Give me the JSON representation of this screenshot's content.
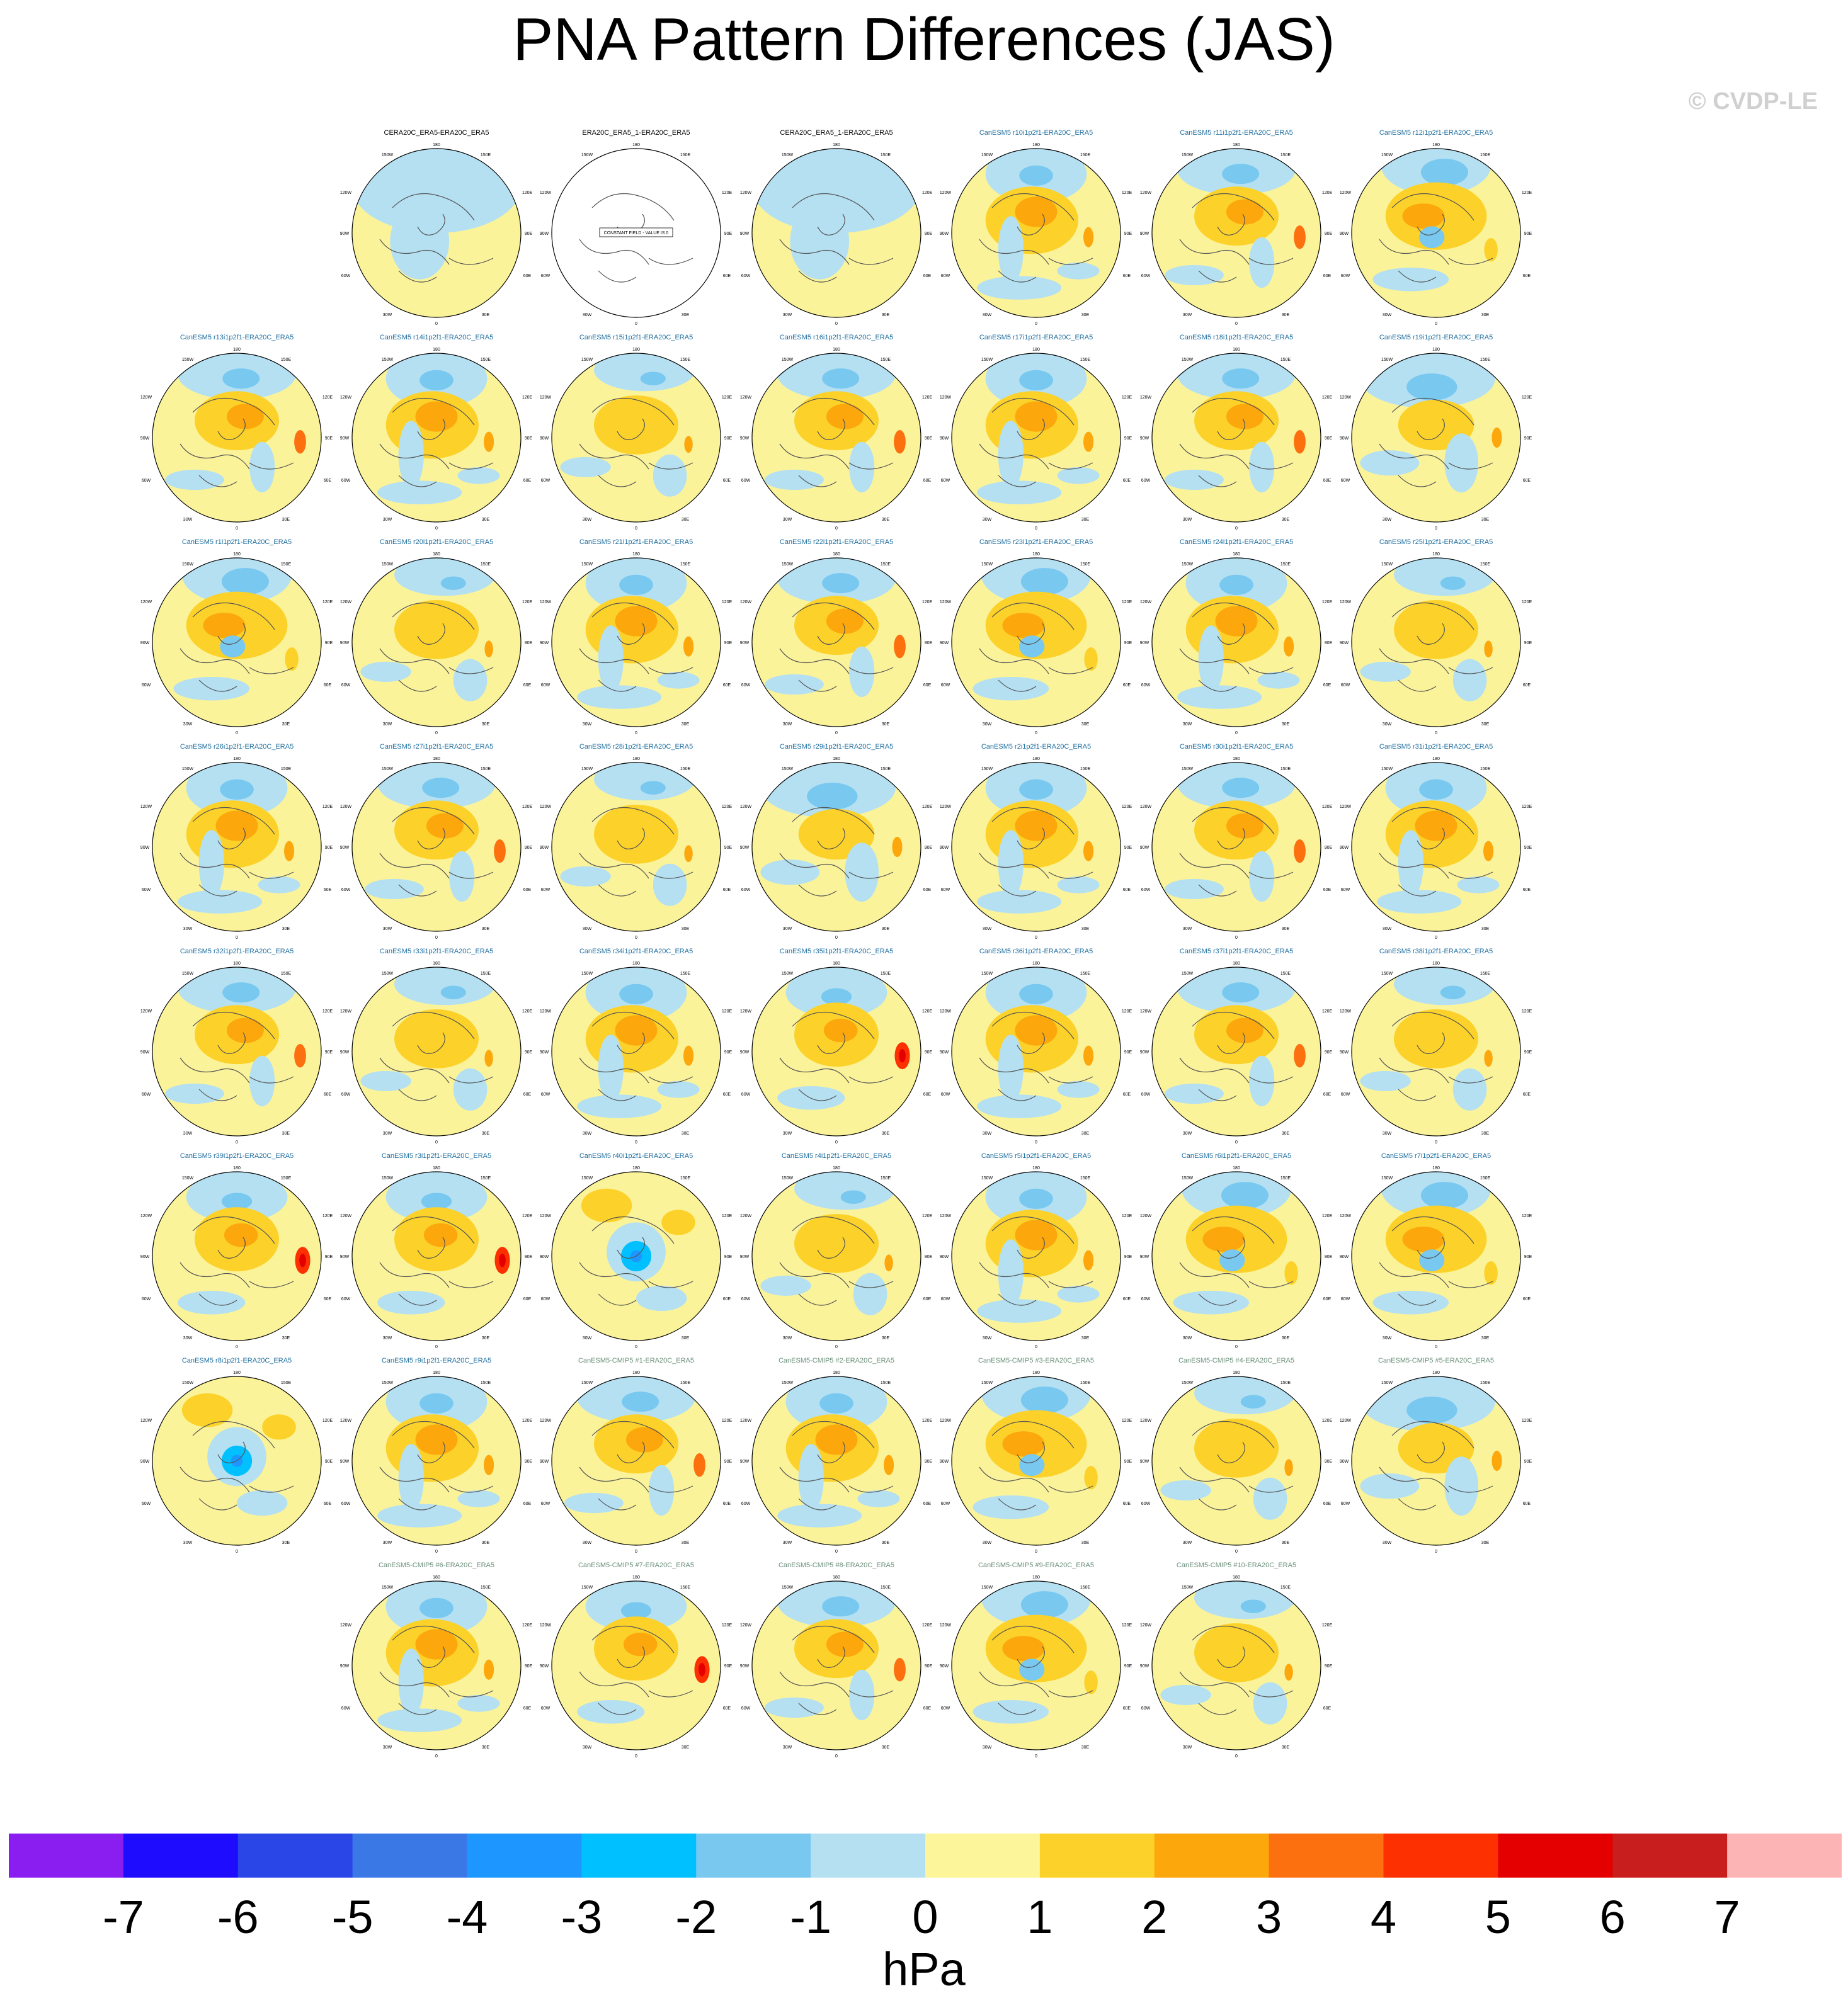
{
  "title": "PNA Pattern Differences (JAS)",
  "copyright": "© CVDP-LE",
  "colors": {
    "model_title": "#1f6fa0",
    "cmip5_title": "#6a8f7a",
    "obs_title": "#000000",
    "map_base": "#fbf39a",
    "coast": "#555555"
  },
  "map_labels": {
    "top": "180",
    "bottom": "0",
    "upper_left": "150W",
    "upper_right": "150E",
    "left_upper": "120W",
    "right_upper": "120E",
    "left": "90W",
    "right": "90E",
    "left_lower": "60W",
    "right_lower": "60E",
    "lower_left": "30W",
    "lower_right": "30E"
  },
  "constant_field_text": "CONSTANT FIELD - VALUE IS 0",
  "panels": [
    {
      "title": "CERA20C_ERA5-ERA20C_ERA5",
      "type": "obs",
      "row": 0,
      "col": 1,
      "pattern": "obs"
    },
    {
      "title": "ERA20C_ERA5_1-ERA20C_ERA5",
      "type": "obs",
      "row": 0,
      "col": 2,
      "pattern": "constant"
    },
    {
      "title": "CERA20C_ERA5_1-ERA20C_ERA5",
      "type": "obs",
      "row": 0,
      "col": 3,
      "pattern": "obs"
    },
    {
      "title": "CanESM5 r10i1p2f1-ERA20C_ERA5",
      "type": "model",
      "row": 0,
      "col": 4,
      "pattern": "a"
    },
    {
      "title": "CanESM5 r11i1p2f1-ERA20C_ERA5",
      "type": "model",
      "row": 0,
      "col": 5,
      "pattern": "b"
    },
    {
      "title": "CanESM5 r12i1p2f1-ERA20C_ERA5",
      "type": "model",
      "row": 0,
      "col": 6,
      "pattern": "c"
    },
    {
      "title": "CanESM5 r13i1p2f1-ERA20C_ERA5",
      "type": "model",
      "row": 1,
      "col": 0,
      "pattern": "b"
    },
    {
      "title": "CanESM5 r14i1p2f1-ERA20C_ERA5",
      "type": "model",
      "row": 1,
      "col": 1,
      "pattern": "a"
    },
    {
      "title": "CanESM5 r15i1p2f1-ERA20C_ERA5",
      "type": "model",
      "row": 1,
      "col": 2,
      "pattern": "d"
    },
    {
      "title": "CanESM5 r16i1p2f1-ERA20C_ERA5",
      "type": "model",
      "row": 1,
      "col": 3,
      "pattern": "b"
    },
    {
      "title": "CanESM5 r17i1p2f1-ERA20C_ERA5",
      "type": "model",
      "row": 1,
      "col": 4,
      "pattern": "a"
    },
    {
      "title": "CanESM5 r18i1p2f1-ERA20C_ERA5",
      "type": "model",
      "row": 1,
      "col": 5,
      "pattern": "b"
    },
    {
      "title": "CanESM5 r19i1p2f1-ERA20C_ERA5",
      "type": "model",
      "row": 1,
      "col": 6,
      "pattern": "e"
    },
    {
      "title": "CanESM5 r1i1p2f1-ERA20C_ERA5",
      "type": "model",
      "row": 2,
      "col": 0,
      "pattern": "c"
    },
    {
      "title": "CanESM5 r20i1p2f1-ERA20C_ERA5",
      "type": "model",
      "row": 2,
      "col": 1,
      "pattern": "d"
    },
    {
      "title": "CanESM5 r21i1p2f1-ERA20C_ERA5",
      "type": "model",
      "row": 2,
      "col": 2,
      "pattern": "a"
    },
    {
      "title": "CanESM5 r22i1p2f1-ERA20C_ERA5",
      "type": "model",
      "row": 2,
      "col": 3,
      "pattern": "b"
    },
    {
      "title": "CanESM5 r23i1p2f1-ERA20C_ERA5",
      "type": "model",
      "row": 2,
      "col": 4,
      "pattern": "c"
    },
    {
      "title": "CanESM5 r24i1p2f1-ERA20C_ERA5",
      "type": "model",
      "row": 2,
      "col": 5,
      "pattern": "a"
    },
    {
      "title": "CanESM5 r25i1p2f1-ERA20C_ERA5",
      "type": "model",
      "row": 2,
      "col": 6,
      "pattern": "d"
    },
    {
      "title": "CanESM5 r26i1p2f1-ERA20C_ERA5",
      "type": "model",
      "row": 3,
      "col": 0,
      "pattern": "a"
    },
    {
      "title": "CanESM5 r27i1p2f1-ERA20C_ERA5",
      "type": "model",
      "row": 3,
      "col": 1,
      "pattern": "b"
    },
    {
      "title": "CanESM5 r28i1p2f1-ERA20C_ERA5",
      "type": "model",
      "row": 3,
      "col": 2,
      "pattern": "d"
    },
    {
      "title": "CanESM5 r29i1p2f1-ERA20C_ERA5",
      "type": "model",
      "row": 3,
      "col": 3,
      "pattern": "e"
    },
    {
      "title": "CanESM5 r2i1p2f1-ERA20C_ERA5",
      "type": "model",
      "row": 3,
      "col": 4,
      "pattern": "a"
    },
    {
      "title": "CanESM5 r30i1p2f1-ERA20C_ERA5",
      "type": "model",
      "row": 3,
      "col": 5,
      "pattern": "b"
    },
    {
      "title": "CanESM5 r31i1p2f1-ERA20C_ERA5",
      "type": "model",
      "row": 3,
      "col": 6,
      "pattern": "a"
    },
    {
      "title": "CanESM5 r32i1p2f1-ERA20C_ERA5",
      "type": "model",
      "row": 4,
      "col": 0,
      "pattern": "b"
    },
    {
      "title": "CanESM5 r33i1p2f1-ERA20C_ERA5",
      "type": "model",
      "row": 4,
      "col": 1,
      "pattern": "d"
    },
    {
      "title": "CanESM5 r34i1p2f1-ERA20C_ERA5",
      "type": "model",
      "row": 4,
      "col": 2,
      "pattern": "a"
    },
    {
      "title": "CanESM5 r35i1p2f1-ERA20C_ERA5",
      "type": "model",
      "row": 4,
      "col": 3,
      "pattern": "f"
    },
    {
      "title": "CanESM5 r36i1p2f1-ERA20C_ERA5",
      "type": "model",
      "row": 4,
      "col": 4,
      "pattern": "a"
    },
    {
      "title": "CanESM5 r37i1p2f1-ERA20C_ERA5",
      "type": "model",
      "row": 4,
      "col": 5,
      "pattern": "b"
    },
    {
      "title": "CanESM5 r38i1p2f1-ERA20C_ERA5",
      "type": "model",
      "row": 4,
      "col": 6,
      "pattern": "d"
    },
    {
      "title": "CanESM5 r39i1p2f1-ERA20C_ERA5",
      "type": "model",
      "row": 5,
      "col": 0,
      "pattern": "f"
    },
    {
      "title": "CanESM5 r3i1p2f1-ERA20C_ERA5",
      "type": "model",
      "row": 5,
      "col": 1,
      "pattern": "f"
    },
    {
      "title": "CanESM5 r40i1p2f1-ERA20C_ERA5",
      "type": "model",
      "row": 5,
      "col": 2,
      "pattern": "g"
    },
    {
      "title": "CanESM5 r4i1p2f1-ERA20C_ERA5",
      "type": "model",
      "row": 5,
      "col": 3,
      "pattern": "d"
    },
    {
      "title": "CanESM5 r5i1p2f1-ERA20C_ERA5",
      "type": "model",
      "row": 5,
      "col": 4,
      "pattern": "a"
    },
    {
      "title": "CanESM5 r6i1p2f1-ERA20C_ERA5",
      "type": "model",
      "row": 5,
      "col": 5,
      "pattern": "c"
    },
    {
      "title": "CanESM5 r7i1p2f1-ERA20C_ERA5",
      "type": "model",
      "row": 5,
      "col": 6,
      "pattern": "c"
    },
    {
      "title": "CanESM5 r8i1p2f1-ERA20C_ERA5",
      "type": "model",
      "row": 6,
      "col": 0,
      "pattern": "g"
    },
    {
      "title": "CanESM5 r9i1p2f1-ERA20C_ERA5",
      "type": "model",
      "row": 6,
      "col": 1,
      "pattern": "a"
    },
    {
      "title": "CanESM5-CMIP5 #1-ERA20C_ERA5",
      "type": "cmip5",
      "row": 6,
      "col": 2,
      "pattern": "b"
    },
    {
      "title": "CanESM5-CMIP5 #2-ERA20C_ERA5",
      "type": "cmip5",
      "row": 6,
      "col": 3,
      "pattern": "a"
    },
    {
      "title": "CanESM5-CMIP5 #3-ERA20C_ERA5",
      "type": "cmip5",
      "row": 6,
      "col": 4,
      "pattern": "c"
    },
    {
      "title": "CanESM5-CMIP5 #4-ERA20C_ERA5",
      "type": "cmip5",
      "row": 6,
      "col": 5,
      "pattern": "d"
    },
    {
      "title": "CanESM5-CMIP5 #5-ERA20C_ERA5",
      "type": "cmip5",
      "row": 6,
      "col": 6,
      "pattern": "e"
    },
    {
      "title": "CanESM5-CMIP5 #6-ERA20C_ERA5",
      "type": "cmip5",
      "row": 7,
      "col": 1,
      "pattern": "a"
    },
    {
      "title": "CanESM5-CMIP5 #7-ERA20C_ERA5",
      "type": "cmip5",
      "row": 7,
      "col": 2,
      "pattern": "f"
    },
    {
      "title": "CanESM5-CMIP5 #8-ERA20C_ERA5",
      "type": "cmip5",
      "row": 7,
      "col": 3,
      "pattern": "b"
    },
    {
      "title": "CanESM5-CMIP5 #9-ERA20C_ERA5",
      "type": "cmip5",
      "row": 7,
      "col": 4,
      "pattern": "c"
    },
    {
      "title": "CanESM5-CMIP5 #10-ERA20C_ERA5",
      "type": "cmip5",
      "row": 7,
      "col": 5,
      "pattern": "d"
    }
  ],
  "chart_data": {
    "type": "heatmap",
    "title": "PNA Pattern Differences (JAS)",
    "colorbar": {
      "units": "hPa",
      "ticks": [
        "-7",
        "-6",
        "-5",
        "-4",
        "-3",
        "-2",
        "-1",
        "0",
        "1",
        "2",
        "3",
        "4",
        "5",
        "6",
        "7"
      ],
      "colors": [
        "#8a1ef0",
        "#1e0cff",
        "#2a46e6",
        "#3a78e6",
        "#1e96ff",
        "#00c0ff",
        "#78c8f0",
        "#b4e0f2",
        "#fcf59a",
        "#fcd22a",
        "#fca80c",
        "#fc7010",
        "#fc3000",
        "#e40000",
        "#c81e1e",
        "#fcb4b4"
      ]
    }
  }
}
